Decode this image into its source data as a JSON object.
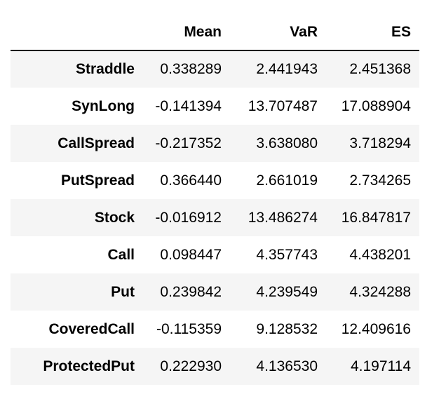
{
  "table": {
    "columns": [
      "",
      "Mean",
      "VaR",
      "ES"
    ],
    "rows": [
      {
        "label": "Straddle",
        "mean": "0.338289",
        "var": "2.441943",
        "es": "2.451368"
      },
      {
        "label": "SynLong",
        "mean": "-0.141394",
        "var": "13.707487",
        "es": "17.088904"
      },
      {
        "label": "CallSpread",
        "mean": "-0.217352",
        "var": "3.638080",
        "es": "3.718294"
      },
      {
        "label": "PutSpread",
        "mean": "0.366440",
        "var": "2.661019",
        "es": "2.734265"
      },
      {
        "label": "Stock",
        "mean": "-0.016912",
        "var": "13.486274",
        "es": "16.847817"
      },
      {
        "label": "Call",
        "mean": "0.098447",
        "var": "4.357743",
        "es": "4.438201"
      },
      {
        "label": "Put",
        "mean": "0.239842",
        "var": "4.239549",
        "es": "4.324288"
      },
      {
        "label": "CoveredCall",
        "mean": "-0.115359",
        "var": "9.128532",
        "es": "12.409616"
      },
      {
        "label": "ProtectedPut",
        "mean": "0.222930",
        "var": "4.136530",
        "es": "4.197114"
      }
    ]
  },
  "colors": {
    "stripe": "#f5f5f5",
    "header_rule": "#000000"
  }
}
